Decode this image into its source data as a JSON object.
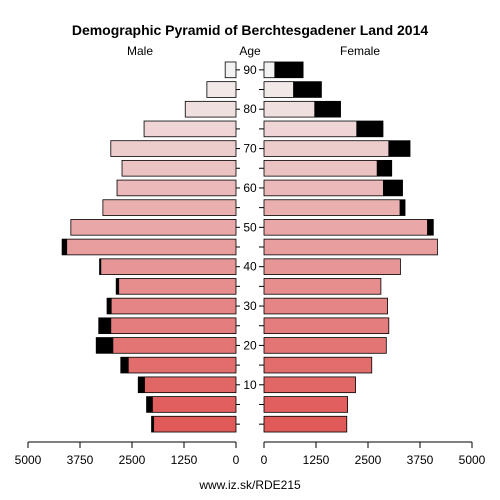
{
  "chart_data": {
    "type": "bar",
    "title": "Demographic Pyramid of Berchtesgadener Land 2014",
    "left_header": "Male",
    "center_header": "Age",
    "right_header": "Female",
    "footer": "www.iz.sk/RDE215",
    "age_ticks": [
      "10",
      "20",
      "30",
      "40",
      "50",
      "60",
      "70",
      "80",
      "90"
    ],
    "x_ticks_left": [
      "5000",
      "3750",
      "2500",
      "1250",
      "0"
    ],
    "x_ticks_right": [
      "0",
      "1250",
      "2500",
      "3750",
      "5000"
    ],
    "xlim": [
      0,
      5000
    ],
    "age_groups": [
      "0-4",
      "5-9",
      "10-14",
      "15-19",
      "20-24",
      "25-29",
      "30-34",
      "35-39",
      "40-44",
      "45-49",
      "50-54",
      "55-59",
      "60-64",
      "65-69",
      "70-74",
      "75-79",
      "80-84",
      "85-89",
      "90+"
    ],
    "male": {
      "total": [
        2030,
        2150,
        2350,
        2770,
        3360,
        3300,
        3100,
        2880,
        3280,
        4180,
        3970,
        3200,
        2860,
        2740,
        3010,
        2210,
        1220,
        700,
        260
      ],
      "excess": [
        60,
        150,
        160,
        190,
        410,
        300,
        110,
        70,
        40,
        120,
        0,
        0,
        0,
        0,
        0,
        0,
        0,
        0,
        0
      ]
    },
    "female": {
      "total": [
        1990,
        2010,
        2200,
        2590,
        2940,
        3000,
        2970,
        2810,
        3280,
        4170,
        4070,
        3390,
        3330,
        3070,
        3510,
        2860,
        1840,
        1380,
        940
      ],
      "excess": [
        0,
        0,
        0,
        0,
        0,
        0,
        0,
        0,
        0,
        0,
        150,
        130,
        470,
        360,
        520,
        640,
        630,
        680,
        690
      ]
    },
    "colors": {
      "young": "#e05a5a",
      "old": "#f2f2f2",
      "excess": "#000000",
      "axis": "#000000"
    }
  }
}
